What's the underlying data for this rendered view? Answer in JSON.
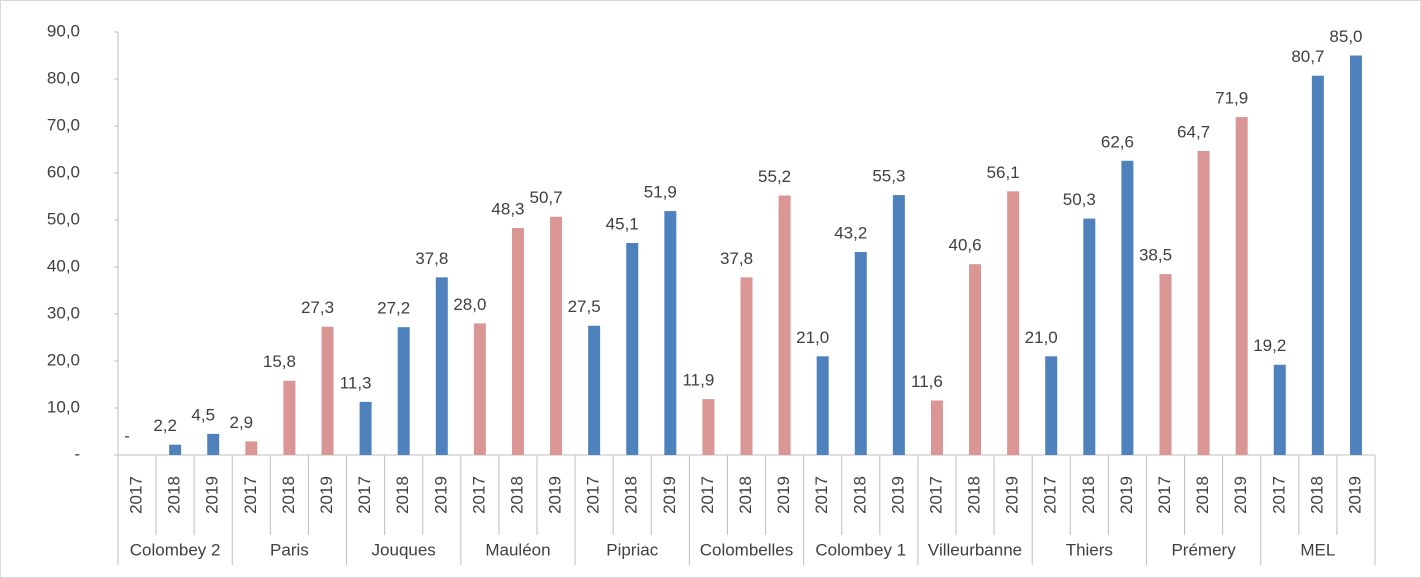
{
  "chart_data": {
    "type": "bar",
    "ylim": [
      0,
      90
    ],
    "yticks": [
      {
        "value": 0,
        "label": "-"
      },
      {
        "value": 10,
        "label": "10,0"
      },
      {
        "value": 20,
        "label": "20,0"
      },
      {
        "value": 30,
        "label": "30,0"
      },
      {
        "value": 40,
        "label": "40,0"
      },
      {
        "value": 50,
        "label": "50,0"
      },
      {
        "value": 60,
        "label": "60,0"
      },
      {
        "value": 70,
        "label": "70,0"
      },
      {
        "value": 80,
        "label": "80,0"
      },
      {
        "value": 90,
        "label": "90,0"
      }
    ],
    "groups": [
      {
        "name": "Colombey 2",
        "color": "#4f81bd",
        "categories": [
          "2017",
          "2018",
          "2019"
        ],
        "values": [
          0,
          2.2,
          4.5
        ],
        "value_labels": [
          "-",
          "2,2",
          "4,5"
        ]
      },
      {
        "name": "Paris",
        "color": "#da9694",
        "categories": [
          "2017",
          "2018",
          "2019"
        ],
        "values": [
          2.9,
          15.8,
          27.3
        ],
        "value_labels": [
          "2,9",
          "15,8",
          "27,3"
        ]
      },
      {
        "name": "Jouques",
        "color": "#4f81bd",
        "categories": [
          "2017",
          "2018",
          "2019"
        ],
        "values": [
          11.3,
          27.2,
          37.8
        ],
        "value_labels": [
          "11,3",
          "27,2",
          "37,8"
        ]
      },
      {
        "name": "Mauléon",
        "color": "#da9694",
        "categories": [
          "2017",
          "2018",
          "2019"
        ],
        "values": [
          28.0,
          48.3,
          50.7
        ],
        "value_labels": [
          "28,0",
          "48,3",
          "50,7"
        ]
      },
      {
        "name": "Pipriac",
        "color": "#4f81bd",
        "categories": [
          "2017",
          "2018",
          "2019"
        ],
        "values": [
          27.5,
          45.1,
          51.9
        ],
        "value_labels": [
          "27,5",
          "45,1",
          "51,9"
        ]
      },
      {
        "name": "Colombelles",
        "color": "#da9694",
        "categories": [
          "2017",
          "2018",
          "2019"
        ],
        "values": [
          11.9,
          37.8,
          55.2
        ],
        "value_labels": [
          "11,9",
          "37,8",
          "55,2"
        ]
      },
      {
        "name": "Colombey 1",
        "color": "#4f81bd",
        "categories": [
          "2017",
          "2018",
          "2019"
        ],
        "values": [
          21.0,
          43.2,
          55.3
        ],
        "value_labels": [
          "21,0",
          "43,2",
          "55,3"
        ]
      },
      {
        "name": "Villeurbanne",
        "color": "#da9694",
        "categories": [
          "2017",
          "2018",
          "2019"
        ],
        "values": [
          11.6,
          40.6,
          56.1
        ],
        "value_labels": [
          "11,6",
          "40,6",
          "56,1"
        ]
      },
      {
        "name": "Thiers",
        "color": "#4f81bd",
        "categories": [
          "2017",
          "2018",
          "2019"
        ],
        "values": [
          21.0,
          50.3,
          62.6
        ],
        "value_labels": [
          "21,0",
          "50,3",
          "62,6"
        ]
      },
      {
        "name": "Prémery",
        "color": "#da9694",
        "categories": [
          "2017",
          "2018",
          "2019"
        ],
        "values": [
          38.5,
          64.7,
          71.9
        ],
        "value_labels": [
          "38,5",
          "64,7",
          "71,9"
        ]
      },
      {
        "name": "MEL",
        "color": "#4f81bd",
        "categories": [
          "2017",
          "2018",
          "2019"
        ],
        "values": [
          19.2,
          80.7,
          85.0
        ],
        "value_labels": [
          "19,2",
          "80,7",
          "85,0"
        ]
      }
    ]
  }
}
